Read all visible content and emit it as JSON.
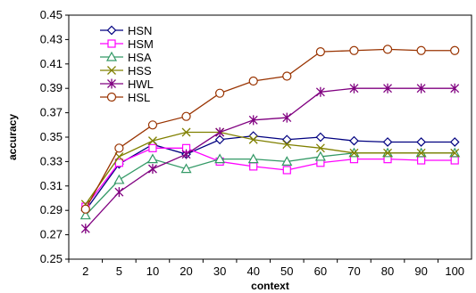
{
  "chart_data": {
    "type": "line",
    "title": "",
    "xlabel": "context",
    "ylabel": "accuracy",
    "categories": [
      "2",
      "5",
      "10",
      "20",
      "30",
      "40",
      "50",
      "60",
      "70",
      "80",
      "90",
      "100"
    ],
    "ylim": [
      0.25,
      0.45
    ],
    "y_ticks": [
      "0.25",
      "0.27",
      "0.29",
      "0.31",
      "0.33",
      "0.35",
      "0.37",
      "0.39",
      "0.41",
      "0.43",
      "0.45"
    ],
    "grid": false,
    "legend_position": "top-left",
    "series": [
      {
        "name": "HSN",
        "color": "#000080",
        "marker": "diamond",
        "values": [
          0.29,
          0.328,
          0.344,
          0.336,
          0.348,
          0.351,
          0.348,
          0.35,
          0.347,
          0.346,
          0.346,
          0.346
        ]
      },
      {
        "name": "HSM",
        "color": "#ff00ff",
        "marker": "square",
        "values": [
          0.293,
          0.329,
          0.341,
          0.341,
          0.33,
          0.326,
          0.323,
          0.329,
          0.332,
          0.332,
          0.331,
          0.331
        ]
      },
      {
        "name": "HSA",
        "color": "#339966",
        "marker": "triangle",
        "values": [
          0.286,
          0.315,
          0.332,
          0.324,
          0.332,
          0.332,
          0.33,
          0.334,
          0.337,
          0.337,
          0.337,
          0.337
        ]
      },
      {
        "name": "HSS",
        "color": "#808000",
        "marker": "x",
        "values": [
          0.295,
          0.334,
          0.347,
          0.354,
          0.354,
          0.348,
          0.344,
          0.341,
          0.337,
          0.337,
          0.337,
          0.337
        ]
      },
      {
        "name": "HWL",
        "color": "#800080",
        "marker": "star",
        "values": [
          0.275,
          0.305,
          0.324,
          0.336,
          0.354,
          0.364,
          0.366,
          0.387,
          0.39,
          0.39,
          0.39,
          0.39
        ]
      },
      {
        "name": "HSL",
        "color": "#993300",
        "marker": "circle",
        "values": [
          0.291,
          0.341,
          0.36,
          0.367,
          0.386,
          0.396,
          0.4,
          0.42,
          0.421,
          0.422,
          0.421,
          0.421
        ]
      }
    ]
  }
}
